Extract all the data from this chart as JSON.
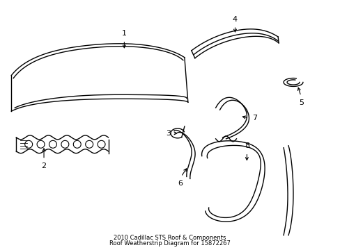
{
  "title_line1": "2010 Cadillac STS Roof & Components",
  "title_line2": "Roof Weatherstrip Diagram for 15872267",
  "background_color": "#ffffff",
  "line_color": "#000000",
  "text_color": "#000000",
  "fig_width": 4.89,
  "fig_height": 3.6,
  "dpi": 100
}
